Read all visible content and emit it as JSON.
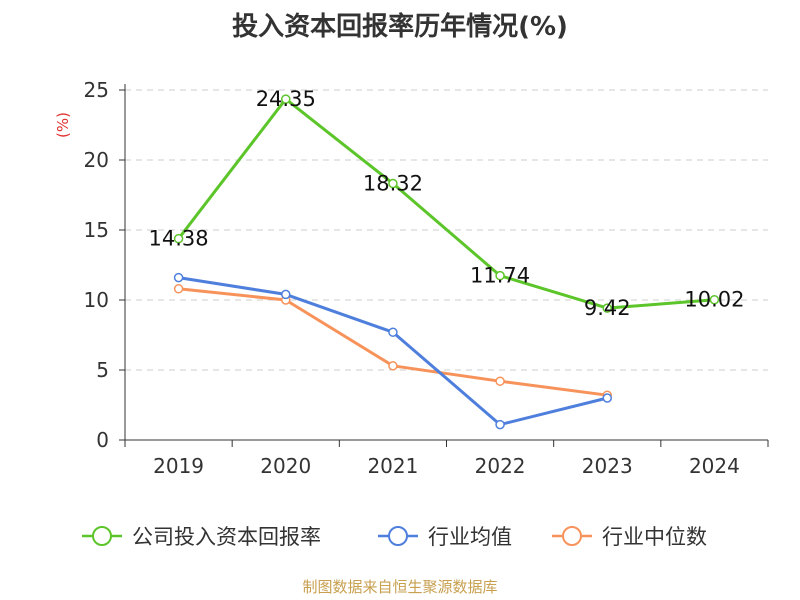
{
  "chart_data": {
    "type": "line",
    "title": "投入资本回报率历年情况(%)",
    "ylabel": "(%)",
    "xlabel": "",
    "categories": [
      "2019",
      "2020",
      "2021",
      "2022",
      "2023",
      "2024"
    ],
    "ylim": [
      0,
      25
    ],
    "yticks": [
      0,
      5,
      10,
      15,
      20,
      25
    ],
    "grid": true,
    "legend_position": "bottom",
    "series": [
      {
        "name": "公司投入资本回报率",
        "values": [
          14.38,
          24.35,
          18.32,
          11.74,
          9.42,
          10.02
        ],
        "color": "#5cc52a",
        "show_labels": true
      },
      {
        "name": "行业均值",
        "values": [
          11.6,
          10.4,
          7.7,
          1.1,
          3.0,
          null
        ],
        "color": "#4f7fdc",
        "show_labels": false
      },
      {
        "name": "行业中位数",
        "values": [
          10.8,
          10.0,
          5.3,
          4.2,
          3.2,
          null
        ],
        "color": "#f7935a",
        "show_labels": false
      }
    ]
  },
  "footer": {
    "source": "制图数据来自恒生聚源数据库"
  },
  "colors": {
    "axis": "#333333",
    "grid": "#cccccc",
    "ylabel": "#e03030",
    "source": "#c8a050"
  }
}
